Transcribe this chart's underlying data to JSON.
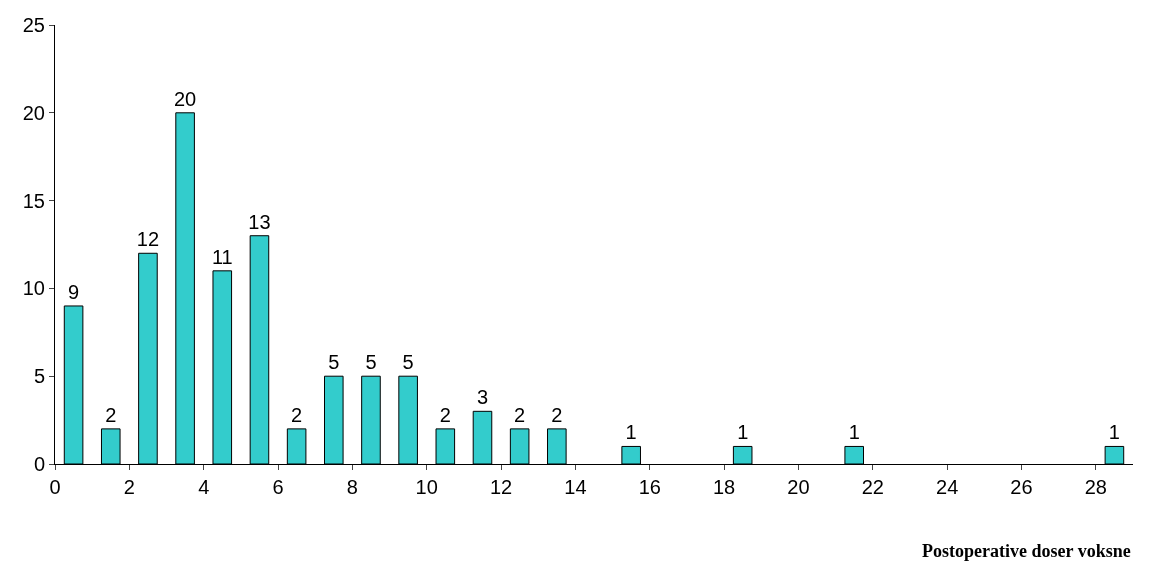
{
  "chart_data": {
    "type": "bar",
    "xlabel": "Postoperative doser voksne",
    "x": [
      0.5,
      1.5,
      2.5,
      3.5,
      4.5,
      5.5,
      6.5,
      7.5,
      8.5,
      9.5,
      10.5,
      11.5,
      12.5,
      13.5,
      15.5,
      18.5,
      21.5,
      28.5
    ],
    "values": [
      9,
      2,
      12,
      20,
      11,
      13,
      2,
      5,
      5,
      5,
      2,
      3,
      2,
      2,
      1,
      1,
      1,
      1
    ],
    "color": "#33cccc",
    "data_labels": true,
    "xlim": [
      0,
      29
    ],
    "xticks": [
      0,
      2,
      4,
      6,
      8,
      10,
      12,
      14,
      16,
      18,
      20,
      22,
      24,
      26,
      28
    ],
    "ylim": [
      0,
      25
    ],
    "yticks": [
      0,
      5,
      10,
      15,
      20,
      25
    ]
  }
}
